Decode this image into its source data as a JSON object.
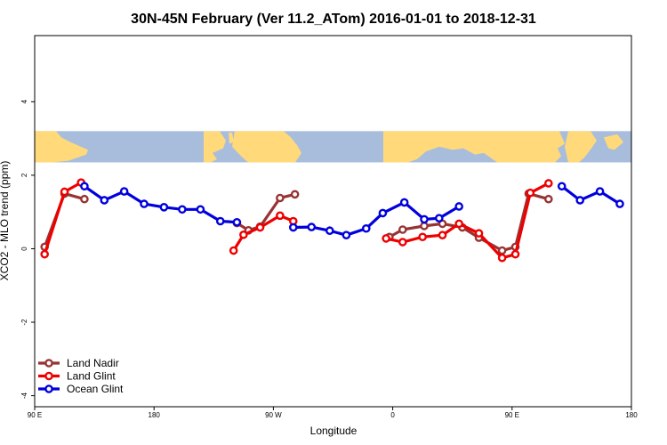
{
  "chart_data": {
    "type": "line",
    "title": "30N-45N February (Ver 11.2_ATom)   2016-01-01 to 2018-12-31",
    "xlabel": "Longitude",
    "ylabel": "XCO2 - MLO trend (ppm)",
    "xlim": [
      -90,
      270
    ],
    "ylim": [
      -4.3,
      5.8
    ],
    "x_ticks": [
      {
        "value": -90,
        "label": "90 E"
      },
      {
        "value": -18,
        "label": "180"
      },
      {
        "value": 54,
        "label": "90 W"
      },
      {
        "value": 126,
        "label": "0"
      },
      {
        "value": 198,
        "label": "90 E"
      },
      {
        "value": 270,
        "label": "180"
      }
    ],
    "y_ticks": [
      {
        "value": -4,
        "label": "-4"
      },
      {
        "value": -2,
        "label": "-2"
      },
      {
        "value": 0,
        "label": "0"
      },
      {
        "value": 2,
        "label": "2"
      },
      {
        "value": 4,
        "label": "4"
      }
    ],
    "map_strip": {
      "y_range": [
        2.35,
        3.2
      ],
      "ocean_color": "#a8bddc",
      "land_color": "#ffd97a"
    },
    "legend_position": "bottom-left",
    "series": [
      {
        "name": "Land Nadir",
        "color": "#993333",
        "segments": [
          [
            [
              -84,
              0.05
            ],
            [
              -72,
              1.5
            ],
            [
              -60,
              1.35
            ]
          ],
          [
            [
              32,
              0.7
            ],
            [
              39,
              0.5
            ],
            [
              46,
              0.6
            ],
            [
              58,
              1.38
            ],
            [
              67,
              1.48
            ]
          ],
          [
            [
              124,
              0.32
            ],
            [
              132,
              0.52
            ],
            [
              145,
              0.62
            ],
            [
              156,
              0.68
            ],
            [
              168,
              0.58
            ],
            [
              178,
              0.3
            ],
            [
              192,
              -0.05
            ],
            [
              200,
              0.05
            ],
            [
              208,
              1.5
            ],
            [
              220,
              1.35
            ]
          ]
        ]
      },
      {
        "name": "Land Glint",
        "color": "#ee0000",
        "segments": [
          [
            [
              -84,
              -0.15
            ],
            [
              -72,
              1.55
            ],
            [
              -62,
              1.8
            ]
          ],
          [
            [
              30,
              -0.05
            ],
            [
              36,
              0.38
            ],
            [
              46,
              0.58
            ],
            [
              58,
              0.9
            ],
            [
              66,
              0.75
            ]
          ],
          [
            [
              122,
              0.28
            ],
            [
              132,
              0.18
            ],
            [
              144,
              0.32
            ],
            [
              156,
              0.37
            ],
            [
              166,
              0.68
            ],
            [
              178,
              0.42
            ],
            [
              192,
              -0.25
            ],
            [
              200,
              -0.15
            ],
            [
              209,
              1.52
            ],
            [
              220,
              1.78
            ]
          ]
        ]
      },
      {
        "name": "Ocean Glint",
        "color": "#0000dd",
        "segments": [
          [
            [
              -60,
              1.7
            ],
            [
              -48,
              1.32
            ],
            [
              -36,
              1.56
            ],
            [
              -24,
              1.22
            ],
            [
              -12,
              1.13
            ],
            [
              -1,
              1.07
            ],
            [
              10,
              1.07
            ],
            [
              22,
              0.75
            ],
            [
              32,
              0.72
            ]
          ],
          [
            [
              66,
              0.58
            ],
            [
              77,
              0.59
            ],
            [
              88,
              0.49
            ],
            [
              98,
              0.37
            ],
            [
              110,
              0.55
            ],
            [
              120,
              0.97
            ],
            [
              133,
              1.26
            ],
            [
              145,
              0.8
            ],
            [
              154,
              0.83
            ],
            [
              166,
              1.15
            ]
          ],
          [
            [
              228,
              1.7
            ],
            [
              239,
              1.32
            ],
            [
              251,
              1.56
            ],
            [
              263,
              1.22
            ]
          ]
        ]
      }
    ]
  }
}
